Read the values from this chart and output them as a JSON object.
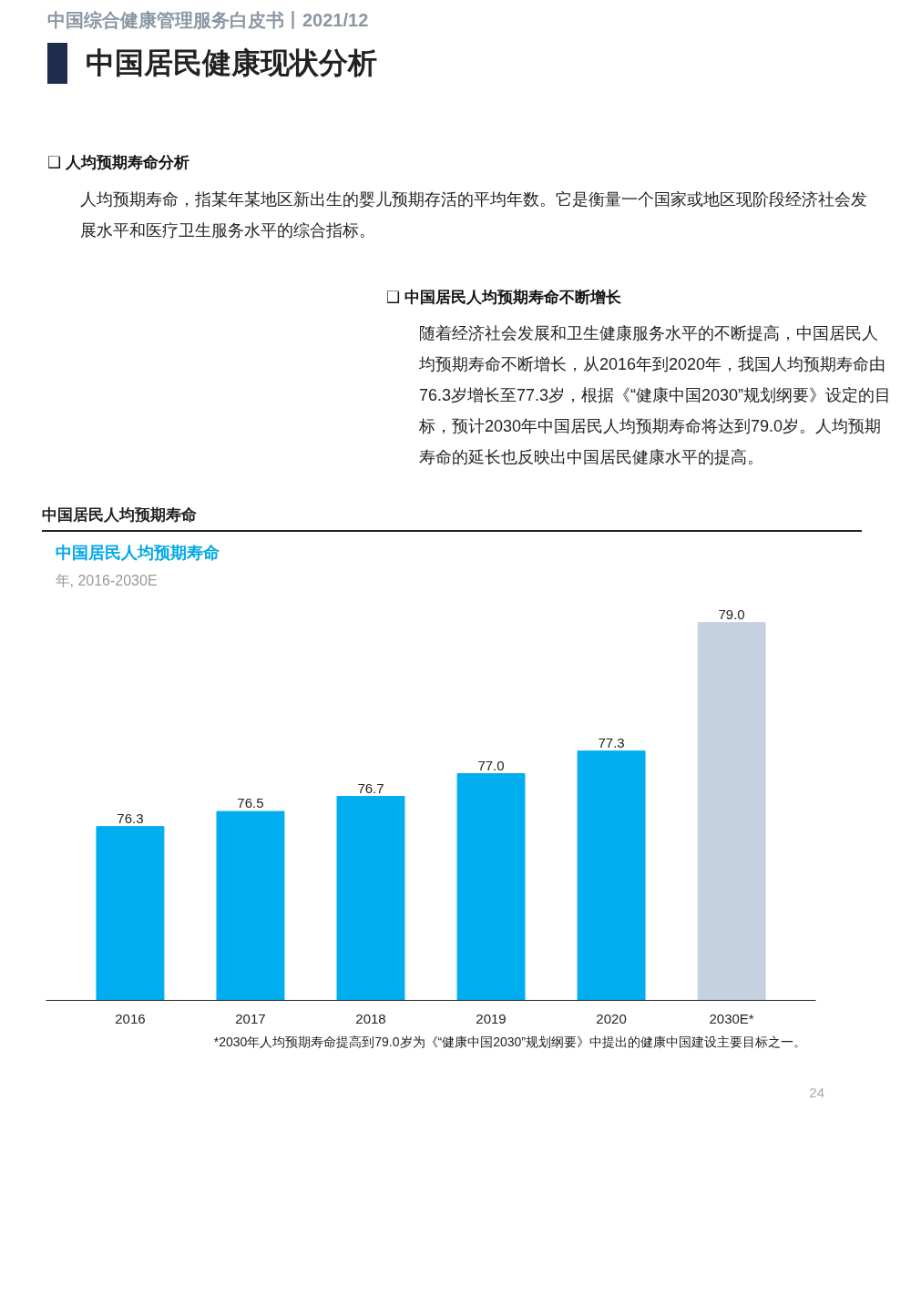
{
  "chart_data": {
    "type": "bar",
    "title": "中国居民人均预期寿命",
    "subtitle": "年, 2016-2030E",
    "categories": [
      "2016",
      "2017",
      "2018",
      "2019",
      "2020",
      "2030E*"
    ],
    "values": [
      76.3,
      76.5,
      76.7,
      77.0,
      77.3,
      79.0
    ],
    "colors": [
      "#00aeef",
      "#00aeef",
      "#00aeef",
      "#00aeef",
      "#00aeef",
      "#c5d0e1"
    ],
    "value_labels": [
      "76.3",
      "76.5",
      "76.7",
      "77.0",
      "77.3",
      "79.0"
    ],
    "ylim": [
      74,
      79
    ],
    "tick_labels": "x",
    "grid": false,
    "annotations": [
      "中国综合健康管理服务白皮书丨2021/12",
      "中国居民健康现状分析",
      "❑ 人均预期寿命分析",
      "人均预期寿命，指某年某地区新出生的婴儿预期存活的平均年数。它是衡量一个国家或地区现阶段经济社会发展水平和医疗卫生服务水平的综合指标。",
      "❑ 中国居民人均预期寿命不断增长",
      "随着经济社会发展和卫生健康服务水平的不断提高，中国居民人均预期寿命不断增长，从2016年到2020年，我国人均预期寿命由76.3岁增长至77.3岁，根据《“健康中国2030”规划纲要》设定的目标，预计2030年中国居民人均预期寿命将达到79.0岁。人均预期寿命的延长也反映出中国居民健康水平的提高。",
      "中国居民人均预期寿命",
      "*2030年人均预期寿命提高到79.0岁为《“健康中国2030”规划纲要》中提出的健康中国建设主要目标之一。",
      "24"
    ]
  }
}
